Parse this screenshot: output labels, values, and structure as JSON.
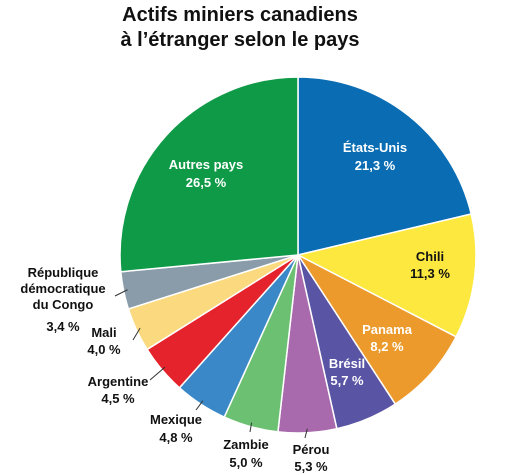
{
  "chart_data": {
    "type": "pie",
    "title": [
      "Actifs miniers canadiens",
      "à l’étranger selon le pays"
    ],
    "categories": [
      "États-Unis",
      "Chili",
      "Panama",
      "Brésil",
      "Pérou",
      "Zambie",
      "Mexique",
      "Argentine",
      "Mali",
      "République démocratique du Congo",
      "Autres pays"
    ],
    "values": [
      21.3,
      11.3,
      8.2,
      5.7,
      5.3,
      5.0,
      4.8,
      4.5,
      4.0,
      3.4,
      26.5
    ],
    "value_labels": [
      "21,3 %",
      "11,3 %",
      "8,2 %",
      "5,7 %",
      "5,3 %",
      "5,0 %",
      "4,8 %",
      "4,5 %",
      "4,0 %",
      "3,4 %",
      "26,5 %"
    ],
    "colors": [
      "#0a6db3",
      "#fce83f",
      "#ec9a2b",
      "#5a54a4",
      "#a96aad",
      "#6cc071",
      "#3b88c8",
      "#e5232c",
      "#fbd97f",
      "#8a9ca9",
      "#0f9a48"
    ]
  }
}
